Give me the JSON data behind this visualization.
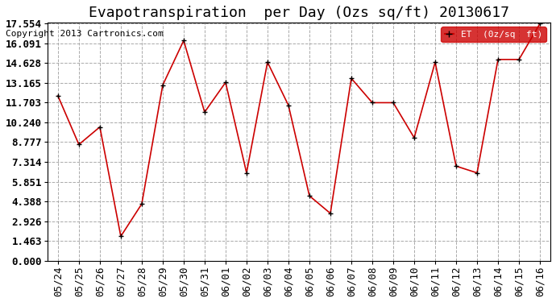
{
  "title": "Evapotranspiration  per Day (Ozs sq/ft) 20130617",
  "copyright": "Copyright 2013 Cartronics.com",
  "legend_label": "ET  (0z/sq  ft)",
  "x_labels": [
    "05/24",
    "05/25",
    "05/26",
    "05/27",
    "05/28",
    "05/29",
    "05/30",
    "05/31",
    "06/01",
    "06/02",
    "06/03",
    "06/04",
    "06/05",
    "06/06",
    "06/07",
    "06/08",
    "06/09",
    "06/10",
    "06/11",
    "06/12",
    "06/13",
    "06/14",
    "06/15",
    "06/16"
  ],
  "y_values": [
    12.2,
    8.6,
    9.9,
    1.8,
    4.2,
    13.0,
    16.3,
    11.0,
    13.2,
    6.5,
    14.7,
    11.5,
    4.8,
    3.5,
    13.5,
    11.7,
    11.7,
    9.1,
    14.7,
    7.0,
    6.5,
    14.9,
    14.9,
    17.554
  ],
  "y_ticks": [
    0.0,
    1.463,
    2.926,
    4.388,
    5.851,
    7.314,
    8.777,
    10.24,
    11.703,
    13.165,
    14.628,
    16.091,
    17.554
  ],
  "y_min": 0.0,
  "y_max": 17.554,
  "line_color": "#cc0000",
  "marker_color": "#000000",
  "background_color": "#ffffff",
  "grid_color": "#aaaaaa",
  "legend_bg": "#cc0000",
  "legend_text_color": "#ffffff",
  "title_fontsize": 13,
  "copyright_fontsize": 8,
  "tick_fontsize": 9,
  "ylabel_fontsize": 9
}
